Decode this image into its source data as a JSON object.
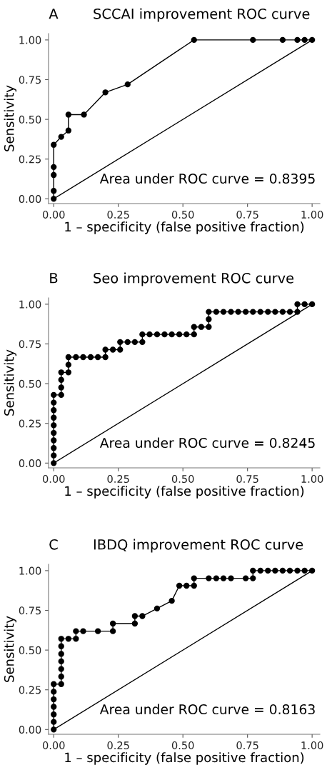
{
  "chart_data": [
    {
      "type": "line",
      "title": "SCCAI improvement ROC curve",
      "xlabel": "1 – specificity (false positive fraction)",
      "ylabel": "Sensitivity",
      "annotations": [
        "A",
        "Area under ROC curve = 0.8395"
      ],
      "xlim": [
        -0.02,
        1.03
      ],
      "ylim": [
        -0.03,
        1.04
      ],
      "xticks": [
        {
          "value": 0,
          "label": "0.00"
        },
        {
          "value": 0.25,
          "label": "0.25"
        },
        {
          "value": 0.5,
          "label": "0.50"
        },
        {
          "value": 0.75,
          "label": "0.75"
        },
        {
          "value": 1,
          "label": "1.00"
        }
      ],
      "yticks": [
        {
          "value": 0,
          "label": "0.00"
        },
        {
          "value": 0.25,
          "label": "0.25"
        },
        {
          "value": 0.5,
          "label": "0.50"
        },
        {
          "value": 0.75,
          "label": "0.75"
        },
        {
          "value": 1,
          "label": "1.00"
        }
      ],
      "grid": false,
      "line_style": "solid",
      "series": [
        {
          "color": "#000000",
          "marker": "circle",
          "x": [
            0,
            0,
            0,
            0,
            0,
            0.029,
            0.057,
            0.057,
            0.117,
            0.2,
            0.286,
            0.543,
            0.771,
            0.886,
            0.943,
            0.971,
            1
          ],
          "values": [
            0,
            0.05,
            0.15,
            0.2,
            0.34,
            0.39,
            0.43,
            0.53,
            0.53,
            0.67,
            0.72,
            1,
            1,
            1,
            1,
            1,
            1
          ]
        },
        {
          "color": "#000000",
          "marker": "none",
          "x": [
            0,
            1
          ],
          "values": [
            0,
            1
          ]
        }
      ]
    },
    {
      "type": "line",
      "title": "Seo improvement ROC curve",
      "xlabel": "1 – specificity (false positive fraction)",
      "ylabel": "Sensitivity",
      "annotations": [
        "B",
        "Area under ROC curve = 0.8245"
      ],
      "xlim": [
        -0.02,
        1.03
      ],
      "ylim": [
        -0.03,
        1.04
      ],
      "xticks": [
        {
          "value": 0,
          "label": "0.00"
        },
        {
          "value": 0.25,
          "label": "0.25"
        },
        {
          "value": 0.5,
          "label": "0.50"
        },
        {
          "value": 0.75,
          "label": "0.75"
        },
        {
          "value": 1,
          "label": "1.00"
        }
      ],
      "yticks": [
        {
          "value": 0,
          "label": "0.00"
        },
        {
          "value": 0.25,
          "label": "0.25"
        },
        {
          "value": 0.5,
          "label": "0.50"
        },
        {
          "value": 0.75,
          "label": "0.75"
        },
        {
          "value": 1,
          "label": "1.00"
        }
      ],
      "grid": false,
      "line_style": "solid",
      "series": [
        {
          "color": "#000000",
          "marker": "circle",
          "x": [
            0,
            0,
            0,
            0,
            0,
            0,
            0,
            0,
            0,
            0,
            0.029,
            0.029,
            0.029,
            0.029,
            0.057,
            0.057,
            0.057,
            0.086,
            0.114,
            0.143,
            0.171,
            0.2,
            0.2,
            0.229,
            0.257,
            0.257,
            0.286,
            0.314,
            0.343,
            0.343,
            0.371,
            0.4,
            0.429,
            0.457,
            0.486,
            0.514,
            0.543,
            0.543,
            0.571,
            0.6,
            0.6,
            0.6,
            0.629,
            0.657,
            0.686,
            0.714,
            0.743,
            0.771,
            0.8,
            0.829,
            0.857,
            0.886,
            0.914,
            0.943,
            0.943,
            0.971,
            1
          ],
          "values": [
            0,
            0.048,
            0.095,
            0.143,
            0.19,
            0.238,
            0.286,
            0.333,
            0.381,
            0.429,
            0.429,
            0.476,
            0.524,
            0.571,
            0.571,
            0.619,
            0.667,
            0.667,
            0.667,
            0.667,
            0.667,
            0.667,
            0.714,
            0.714,
            0.714,
            0.762,
            0.762,
            0.762,
            0.762,
            0.81,
            0.81,
            0.81,
            0.81,
            0.81,
            0.81,
            0.81,
            0.81,
            0.857,
            0.857,
            0.857,
            0.905,
            0.952,
            0.952,
            0.952,
            0.952,
            0.952,
            0.952,
            0.952,
            0.952,
            0.952,
            0.952,
            0.952,
            0.952,
            0.952,
            1,
            1,
            1
          ]
        },
        {
          "color": "#000000",
          "marker": "none",
          "x": [
            0,
            1
          ],
          "values": [
            0,
            1
          ]
        }
      ]
    },
    {
      "type": "line",
      "title": "IBDQ improvement ROC curve",
      "xlabel": "1 – specificity (false positive fraction)",
      "ylabel": "Sensitivity",
      "annotations": [
        "C",
        "Area under ROC curve = 0.8163"
      ],
      "xlim": [
        -0.02,
        1.03
      ],
      "ylim": [
        -0.03,
        1.04
      ],
      "xticks": [
        {
          "value": 0,
          "label": "0.00"
        },
        {
          "value": 0.25,
          "label": "0.25"
        },
        {
          "value": 0.5,
          "label": "0.50"
        },
        {
          "value": 0.75,
          "label": "0.75"
        },
        {
          "value": 1,
          "label": "1.00"
        }
      ],
      "yticks": [
        {
          "value": 0,
          "label": "0.00"
        },
        {
          "value": 0.25,
          "label": "0.25"
        },
        {
          "value": 0.5,
          "label": "0.50"
        },
        {
          "value": 0.75,
          "label": "0.75"
        },
        {
          "value": 1,
          "label": "1.00"
        }
      ],
      "grid": false,
      "line_style": "solid",
      "series": [
        {
          "color": "#000000",
          "marker": "circle",
          "x": [
            0,
            0,
            0,
            0,
            0,
            0,
            0,
            0.029,
            0.029,
            0.029,
            0.029,
            0.029,
            0.029,
            0.029,
            0.057,
            0.086,
            0.086,
            0.114,
            0.171,
            0.229,
            0.229,
            0.314,
            0.314,
            0.343,
            0.4,
            0.457,
            0.486,
            0.514,
            0.543,
            0.543,
            0.6,
            0.629,
            0.657,
            0.686,
            0.743,
            0.771,
            0.771,
            0.8,
            0.829,
            0.857,
            0.886,
            0.914,
            0.943,
            0.971,
            1
          ],
          "values": [
            0,
            0.048,
            0.095,
            0.143,
            0.19,
            0.238,
            0.286,
            0.286,
            0.333,
            0.381,
            0.429,
            0.476,
            0.524,
            0.571,
            0.571,
            0.571,
            0.619,
            0.619,
            0.619,
            0.619,
            0.667,
            0.667,
            0.714,
            0.714,
            0.762,
            0.81,
            0.905,
            0.905,
            0.905,
            0.952,
            0.952,
            0.952,
            0.952,
            0.952,
            0.952,
            0.952,
            1,
            1,
            1,
            1,
            1,
            1,
            1,
            1,
            1
          ]
        },
        {
          "color": "#000000",
          "marker": "none",
          "x": [
            0,
            1
          ],
          "values": [
            0,
            1
          ]
        }
      ]
    }
  ]
}
